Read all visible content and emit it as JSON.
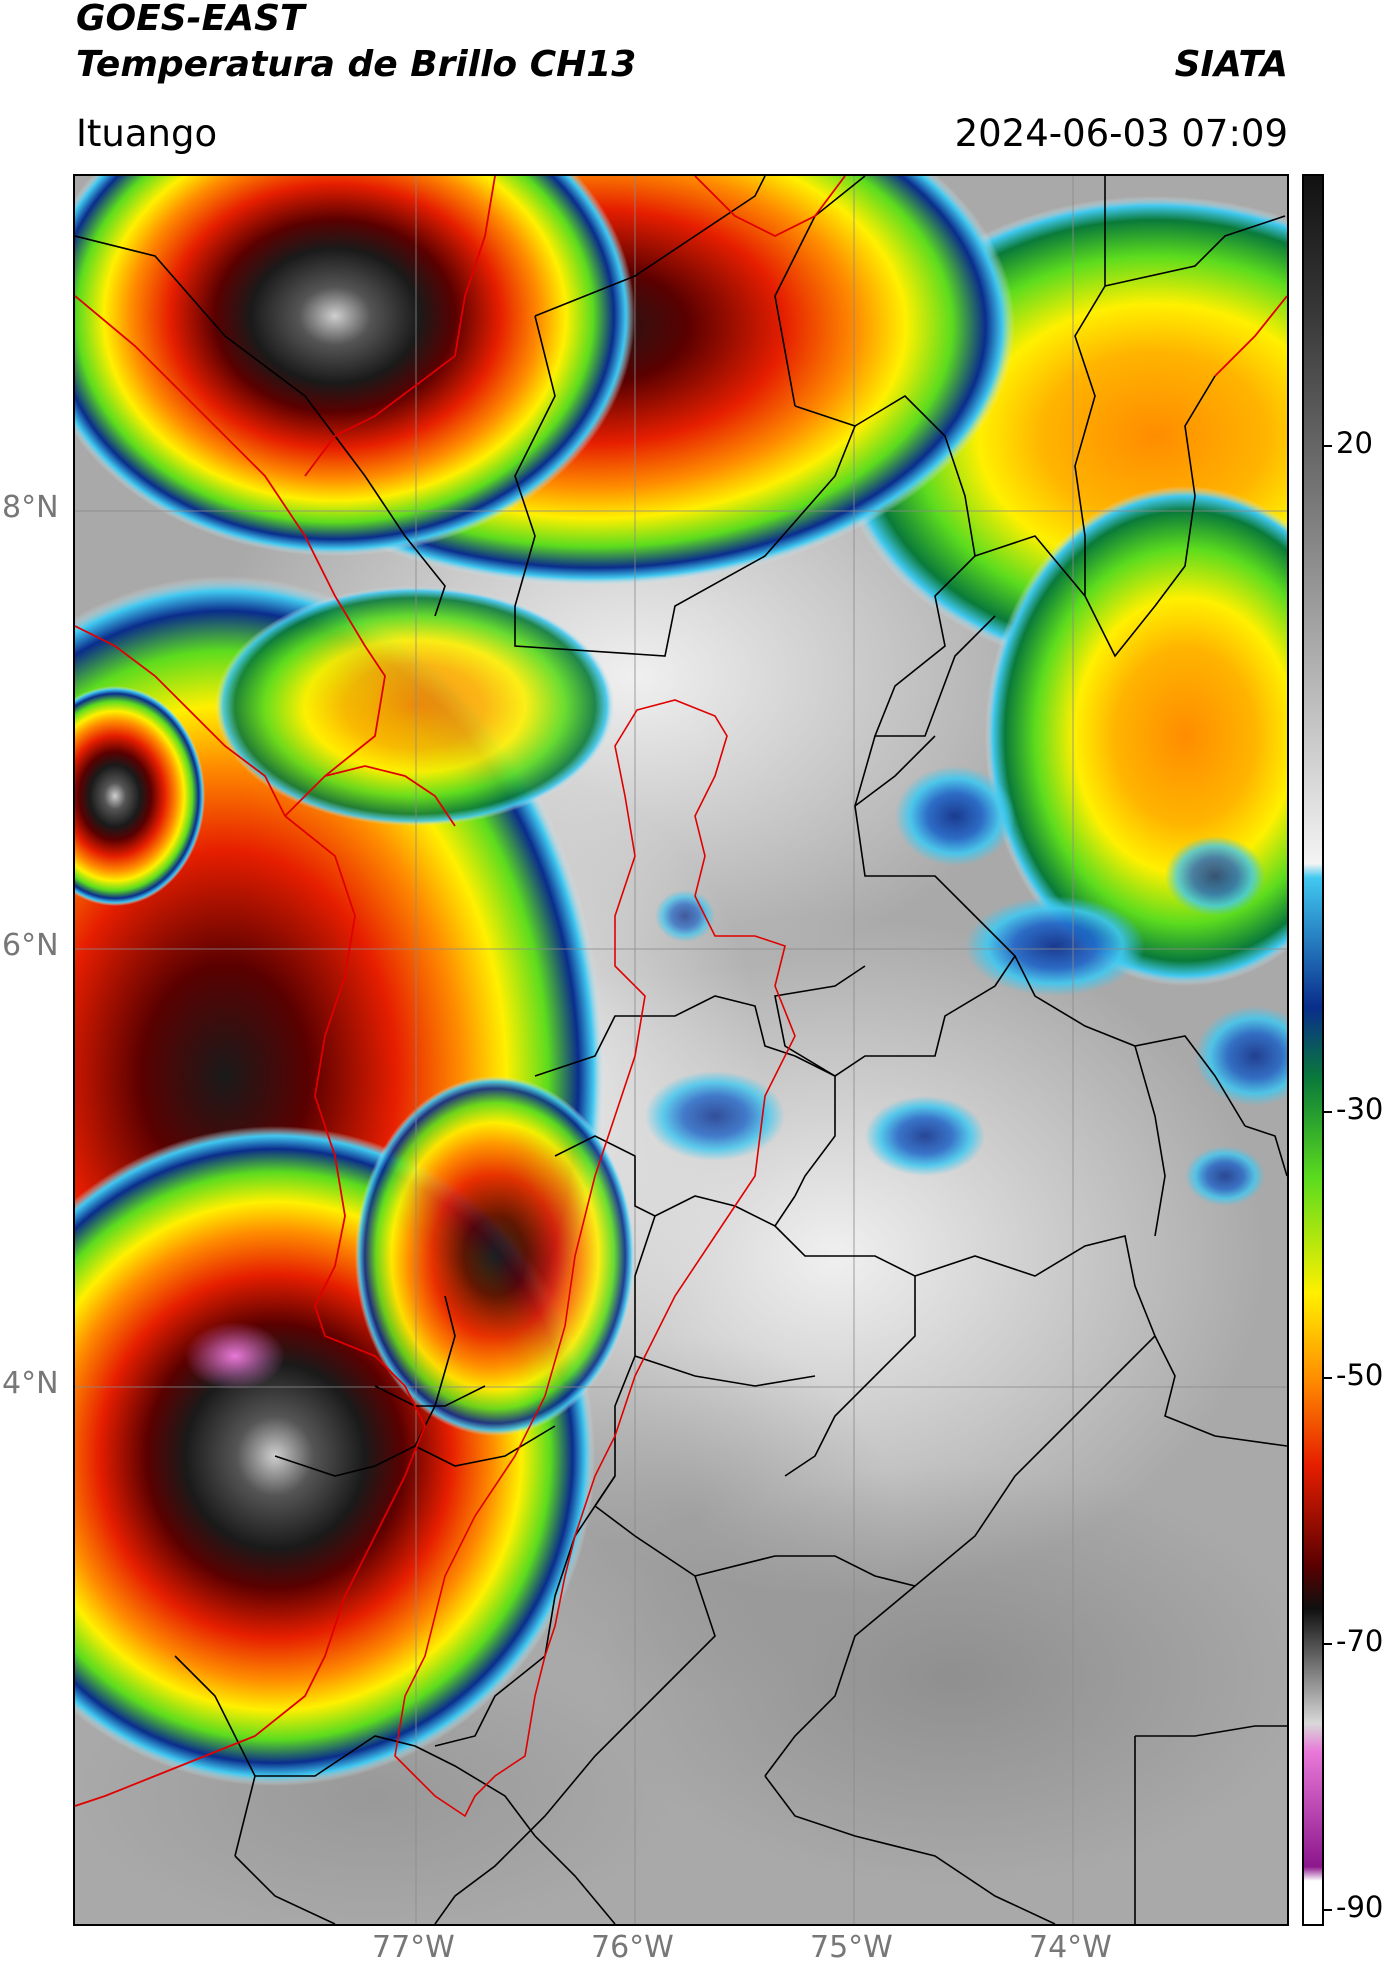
{
  "header": {
    "satellite": "GOES-EAST",
    "product": "Temperatura de Brillo CH13",
    "agency": "SIATA",
    "location": "Ituango",
    "datetime": "2024-06-03 07:09"
  },
  "axes": {
    "lat_labels": [
      "8°N",
      "6°N",
      "4°N"
    ],
    "lon_labels": [
      "77°W",
      "76°W",
      "75°W",
      "74°W"
    ]
  },
  "colorbar": {
    "labels": [
      "20",
      "-30",
      "-50",
      "-70",
      "-90"
    ],
    "stops": [
      {
        "t": 20,
        "color": "#3a3a3a"
      },
      {
        "t": -18,
        "color": "#f4f4f4"
      },
      {
        "t": -19,
        "color": "#40c8f0"
      },
      {
        "t": -28,
        "color": "#0a2d8c"
      },
      {
        "t": -33,
        "color": "#0a7a3a"
      },
      {
        "t": -40,
        "color": "#5cdc1e"
      },
      {
        "t": -48,
        "color": "#fff000"
      },
      {
        "t": -54,
        "color": "#ff8c00"
      },
      {
        "t": -60,
        "color": "#e61e00"
      },
      {
        "t": -67,
        "color": "#5a0000"
      },
      {
        "t": -70,
        "color": "#101010"
      },
      {
        "t": -78,
        "color": "#d8d8d8"
      },
      {
        "t": -80,
        "color": "#e878d8"
      },
      {
        "t": -88,
        "color": "#8c168c"
      },
      {
        "t": -89,
        "color": "#ffffff"
      }
    ]
  },
  "colors": {
    "background_gray": "#a9a9a9",
    "country_border": "#e00000",
    "admin_border": "#000000",
    "grid": "#8a8a8a"
  }
}
